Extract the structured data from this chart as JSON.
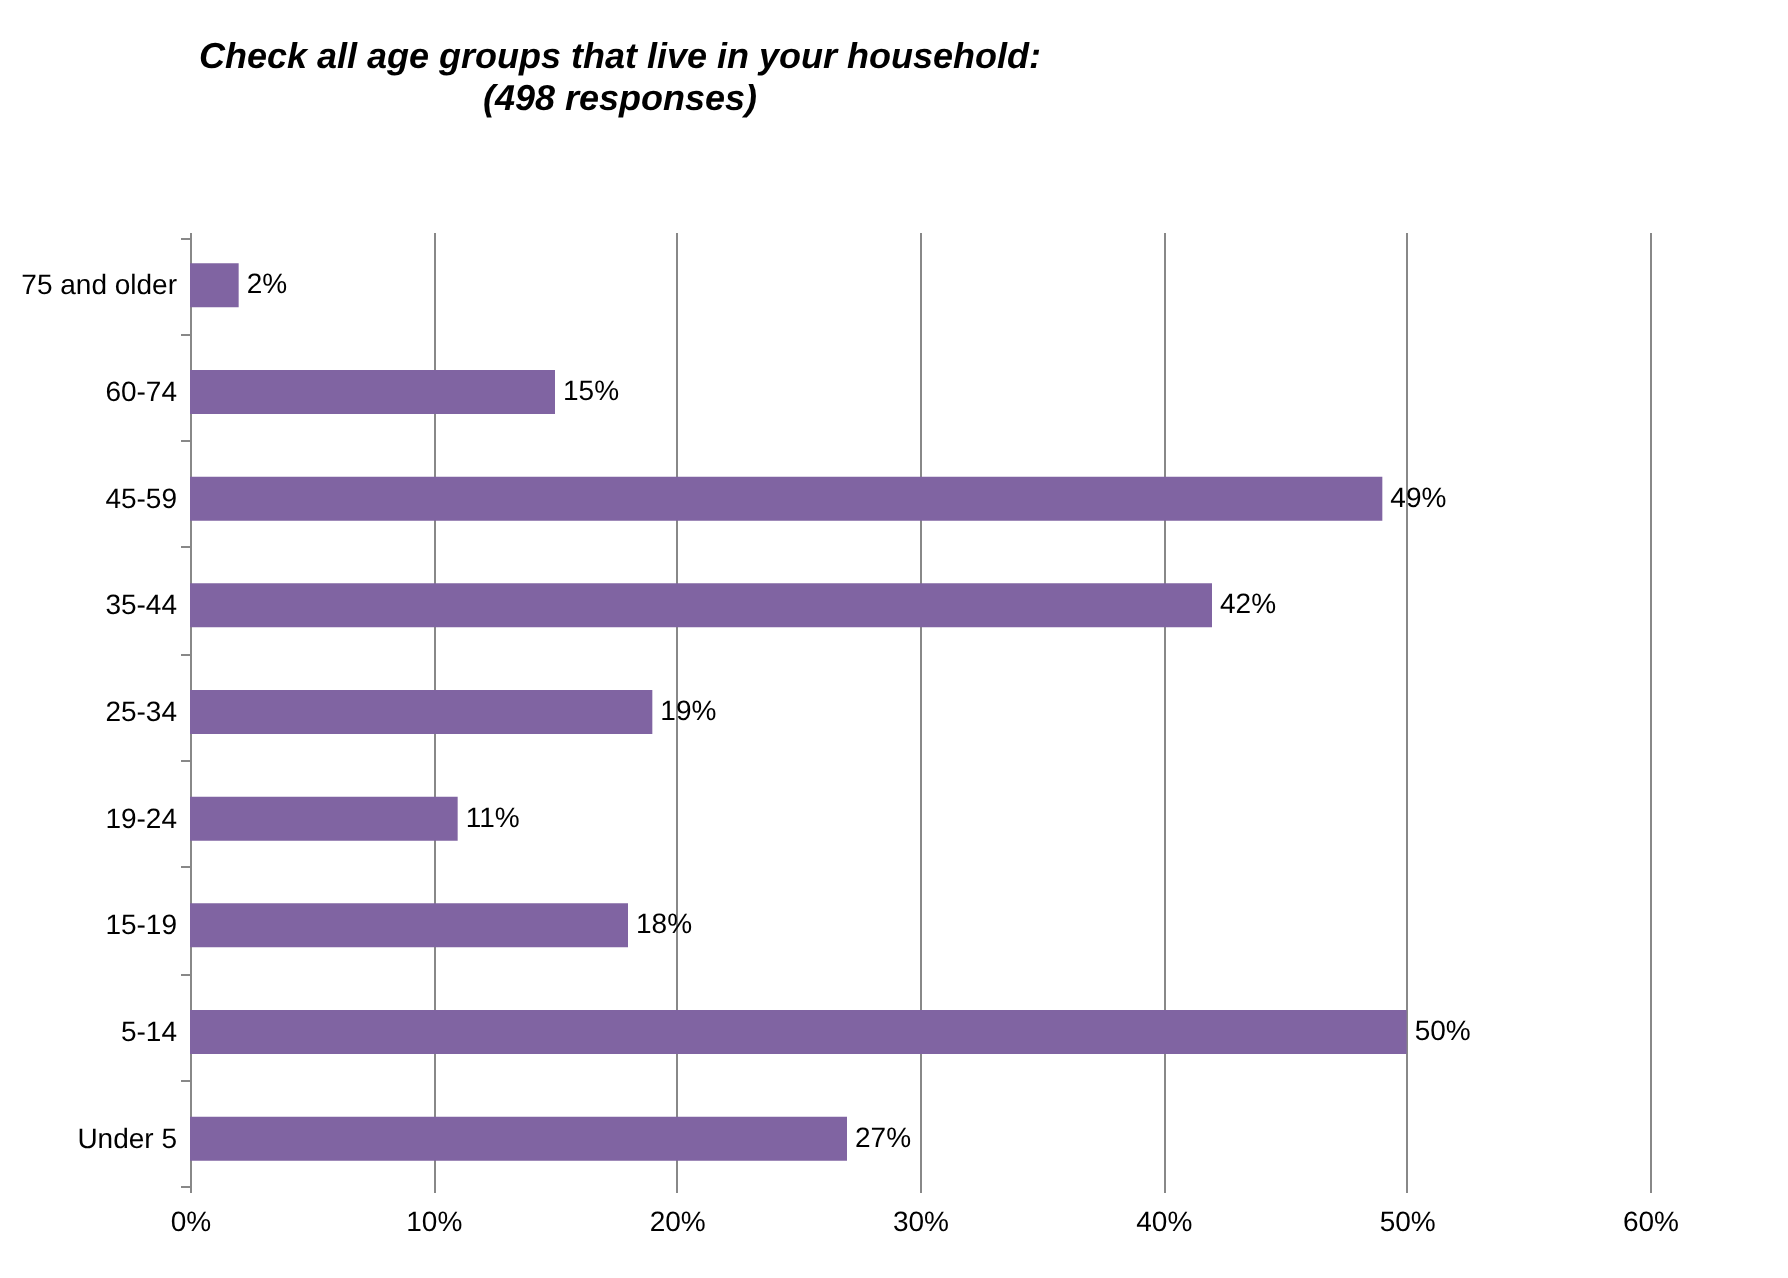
{
  "chart_data": {
    "type": "bar",
    "orientation": "horizontal",
    "title": "Check all age groups that live in your household:",
    "subtitle": "(498 responses)",
    "categories": [
      "75 and older",
      "60-74",
      "45-59",
      "35-44",
      "25-34",
      "19-24",
      "15-19",
      "5-14",
      "Under 5"
    ],
    "values": [
      2,
      15,
      49,
      42,
      19,
      11,
      18,
      50,
      27
    ],
    "value_labels": [
      "2%",
      "15%",
      "49%",
      "42%",
      "19%",
      "11%",
      "18%",
      "50%",
      "27%"
    ],
    "color": "#8064a2",
    "xlim": [
      0,
      60
    ],
    "xticks": [
      {
        "value": 0,
        "label": "0%"
      },
      {
        "value": 10,
        "label": "10%"
      },
      {
        "value": 20,
        "label": "20%"
      },
      {
        "value": 30,
        "label": "30%"
      },
      {
        "value": 40,
        "label": "40%"
      },
      {
        "value": 50,
        "label": "50%"
      },
      {
        "value": 60,
        "label": "60%"
      }
    ],
    "grid": "x"
  }
}
